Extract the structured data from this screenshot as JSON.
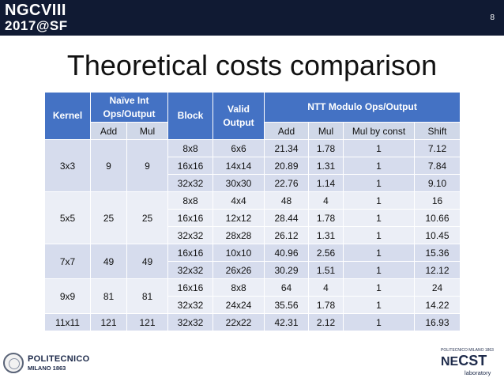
{
  "header": {
    "logo_line1": "NGCVIII",
    "logo_line2": "2017@SF",
    "page_number": "8"
  },
  "slide": {
    "title": "Theoretical costs comparison"
  },
  "table": {
    "headers": {
      "kernel": "Kernel",
      "naive": "Naïve Int Ops/Output",
      "block": "Block",
      "valid_output": "Valid Output",
      "ntt": "NTT Modulo Ops/Output"
    },
    "subheaders": {
      "naive_add": "Add",
      "naive_mul": "Mul",
      "ntt_add": "Add",
      "ntt_mul": "Mul",
      "ntt_mul_const": "Mul by const",
      "ntt_shift": "Shift"
    },
    "groups": [
      {
        "kernel": "3x3",
        "add": "9",
        "mul": "9",
        "rows": [
          {
            "block": "8x8",
            "valid": "6x6",
            "ntt_add": "21.34",
            "ntt_mul": "1.78",
            "mul_const": "1",
            "shift": "7.12"
          },
          {
            "block": "16x16",
            "valid": "14x14",
            "ntt_add": "20.89",
            "ntt_mul": "1.31",
            "mul_const": "1",
            "shift": "7.84"
          },
          {
            "block": "32x32",
            "valid": "30x30",
            "ntt_add": "22.76",
            "ntt_mul": "1.14",
            "mul_const": "1",
            "shift": "9.10"
          }
        ]
      },
      {
        "kernel": "5x5",
        "add": "25",
        "mul": "25",
        "rows": [
          {
            "block": "8x8",
            "valid": "4x4",
            "ntt_add": "48",
            "ntt_mul": "4",
            "mul_const": "1",
            "shift": "16"
          },
          {
            "block": "16x16",
            "valid": "12x12",
            "ntt_add": "28.44",
            "ntt_mul": "1.78",
            "mul_const": "1",
            "shift": "10.66"
          },
          {
            "block": "32x32",
            "valid": "28x28",
            "ntt_add": "26.12",
            "ntt_mul": "1.31",
            "mul_const": "1",
            "shift": "10.45"
          }
        ]
      },
      {
        "kernel": "7x7",
        "add": "49",
        "mul": "49",
        "rows": [
          {
            "block": "16x16",
            "valid": "10x10",
            "ntt_add": "40.96",
            "ntt_mul": "2.56",
            "mul_const": "1",
            "shift": "15.36"
          },
          {
            "block": "32x32",
            "valid": "26x26",
            "ntt_add": "30.29",
            "ntt_mul": "1.51",
            "mul_const": "1",
            "shift": "12.12"
          }
        ]
      },
      {
        "kernel": "9x9",
        "add": "81",
        "mul": "81",
        "rows": [
          {
            "block": "16x16",
            "valid": "8x8",
            "ntt_add": "64",
            "ntt_mul": "4",
            "mul_const": "1",
            "shift": "24"
          },
          {
            "block": "32x32",
            "valid": "24x24",
            "ntt_add": "35.56",
            "ntt_mul": "1.78",
            "mul_const": "1",
            "shift": "14.22"
          }
        ]
      },
      {
        "kernel": "11x11",
        "add": "121",
        "mul": "121",
        "rows": [
          {
            "block": "32x32",
            "valid": "22x22",
            "ntt_add": "42.31",
            "ntt_mul": "2.12",
            "mul_const": "1",
            "shift": "16.93"
          }
        ]
      }
    ]
  },
  "footer": {
    "left_line1": "POLITECNICO",
    "left_line2": "MILANO 1863",
    "right_small": "POLITECNICO MILANO 1863",
    "right_ne": "NE",
    "right_cst": "CST",
    "right_lab": "laboratory"
  },
  "colors": {
    "topbar": "#101a33",
    "header_blue": "#4472c4",
    "band_dark": "#d6dced",
    "band_light": "#ebeef6"
  }
}
